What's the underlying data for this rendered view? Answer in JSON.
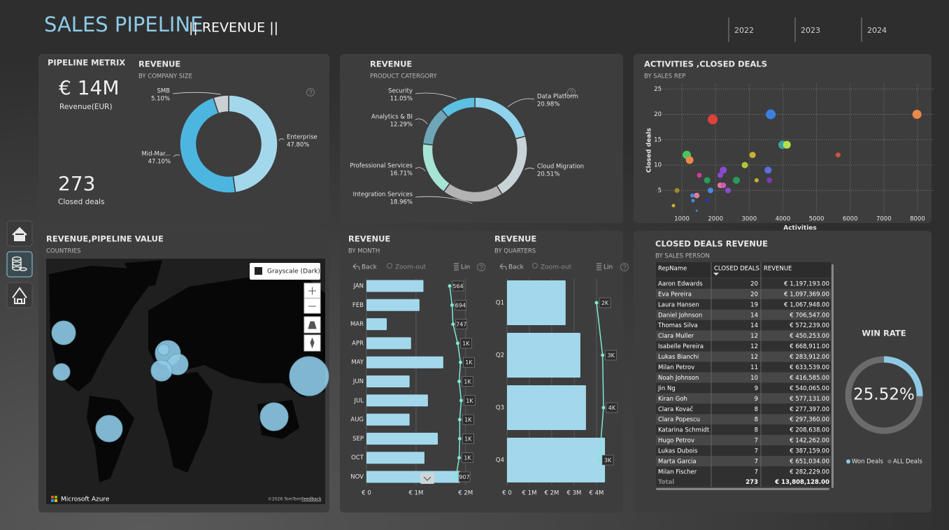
{
  "header": {
    "title": "SALES PIPELINE",
    "subtitle": "|| REVENUE ||",
    "years": [
      "2022",
      "2023",
      "2024"
    ]
  },
  "kpi": {
    "title": "PIPELINE METRIX",
    "revenue": "€ 14M",
    "revenue_label": "Revenue(EUR)",
    "deals": "273",
    "deals_label": "Closed deals"
  },
  "map": {
    "title": "REVENUE,PIPELINE VALUE",
    "subtitle": "COUNTRIES",
    "style": "Grayscale (Dark)",
    "brand": "Microsoft Azure",
    "copyright": "©2026 TomTom",
    "feedback": "Feedback"
  },
  "chart_data": [
    {
      "type": "donut",
      "title": "REVENUE",
      "subtitle": "BY COMPANY SIZE",
      "categories": [
        "Enterprise",
        "Mid-Mar...",
        "SMB"
      ],
      "values": [
        47.8,
        47.1,
        5.1
      ],
      "value_labels": [
        "47.80%",
        "47.10%",
        "5.10%"
      ],
      "colors": [
        "#a3d8ec",
        "#4cb6e0",
        "#c9d1d5"
      ]
    },
    {
      "type": "donut",
      "title": "REVENUE",
      "subtitle": "PRODUCT CATERGORY",
      "categories": [
        "Data Platform",
        "Cloud Migration",
        "Integration Services",
        "Professional Services",
        "Analytics & BI",
        "Security"
      ],
      "values": [
        20.98,
        20.51,
        18.96,
        16.71,
        12.29,
        11.05
      ],
      "value_labels": [
        "20.98%",
        "20.51%",
        "18.96%",
        "16.71%",
        "12.29%",
        "11.05%"
      ],
      "colors": [
        "#8ed2ec",
        "#c8d3d8",
        "#b3b3b3",
        "#a6e4d6",
        "#6ea6b8",
        "#5cc0e2"
      ]
    },
    {
      "type": "scatter",
      "title": "ACTIVITIES ,CLOSED DEALS",
      "subtitle": "BY SALES REP",
      "x_label": "Activities",
      "y_label": "Closed deals",
      "x": [
        1915,
        3640,
        7985,
        1145,
        1230,
        3990,
        4120,
        5640,
        3100,
        2870,
        3560,
        2230,
        1520,
        2140,
        2620,
        1750,
        3220,
        3600,
        2140,
        2230,
        1850,
        2370,
        855,
        1440,
        1310,
        1330,
        1750,
        750,
        1440
      ],
      "values": [
        19,
        20,
        20,
        12,
        11,
        14,
        14,
        12,
        12,
        10,
        9,
        9,
        8,
        8,
        7,
        7,
        7,
        7,
        6,
        6,
        5,
        5,
        5,
        4,
        4,
        3,
        3,
        2,
        1
      ],
      "sizes": [
        7,
        7,
        6.5,
        6,
        5.5,
        6,
        5.5,
        3.5,
        4.5,
        4.5,
        5,
        5,
        3.5,
        4,
        5,
        4.5,
        3,
        4,
        4,
        4,
        4,
        4,
        3.5,
        4,
        3,
        2.5,
        3,
        2.5,
        1.5
      ],
      "colors": [
        "#e0403a",
        "#3b7fe0",
        "#e8894a",
        "#4cc460",
        "#e8894a",
        "#3aa0a8",
        "#b6e04a",
        "#d0543a",
        "#c8b030",
        "#b0c83a",
        "#5a6ee0",
        "#8a4ad0",
        "#d03a9a",
        "#8a4ad0",
        "#2a9a5a",
        "#2a9a5a",
        "#c8b030",
        "#7a3ab0",
        "#e07aa0",
        "#d05ab0",
        "#4a8ae0",
        "#8a4ad0",
        "#9a8a2a",
        "#e07aa0",
        "#4a8ae0",
        "#4a8ae0",
        "#2a3a9a",
        "#c8b030",
        "#4a8ae0"
      ],
      "xlim": [
        230,
        8500
      ],
      "ylim": [
        0.5,
        26
      ],
      "xticks": [
        1000,
        2000,
        3000,
        4000,
        5000,
        6000,
        7000,
        8000
      ],
      "yticks": [
        5,
        10,
        15,
        20,
        25
      ],
      "grid": true
    },
    {
      "type": "hbar",
      "title": "REVENUE",
      "subtitle": "BY MONTH",
      "toolbar": [
        "Back",
        "Zoom-out",
        "Lin"
      ],
      "categories": [
        "JAN",
        "FEB",
        "MAR",
        "APR",
        "MAY",
        "JUN",
        "JUL",
        "AUG",
        "SEP",
        "OCT",
        "NOV"
      ],
      "series": [
        {
          "values": [
            1150000,
            1070000,
            410000,
            900000,
            1550000,
            870000,
            1240000,
            870000,
            1440000,
            1170000,
            1890000
          ],
          "color": "#a3d8ec"
        },
        {
          "axis": "x2",
          "values": [
            564,
            694,
            747,
            1000,
            1150,
            1080,
            1190,
            1110,
            1110,
            1080,
            907
          ],
          "value_labels": [
            "564",
            "694",
            "747",
            "1K",
            "1K",
            "1K",
            "1K",
            "1K",
            "1K",
            "1K",
            "907"
          ],
          "color": "#7fe8d0"
        }
      ],
      "xlim": [
        0,
        2060000
      ],
      "xticks": [
        {
          "value": 0,
          "label": "€ 0"
        },
        {
          "value": 1000000,
          "label": "€ 1M"
        },
        {
          "value": 2000000,
          "label": "€ 2M"
        }
      ],
      "x2lim": [
        -3960,
        1590
      ],
      "grid": true
    },
    {
      "type": "hbar",
      "title": "REVENUE",
      "subtitle": "BY QUARTERS",
      "toolbar": [
        "Back",
        "Zoom-out",
        "Lin"
      ],
      "categories": [
        "Q1",
        "Q2",
        "Q3",
        "Q4"
      ],
      "series": [
        {
          "values": [
            2620000,
            3280000,
            3530000,
            4380000
          ],
          "color": "#a3d8ec"
        },
        {
          "axis": "x2",
          "values": [
            2000,
            3400,
            3600,
            2650
          ],
          "value_labels": [
            "2K",
            "3K",
            "4K",
            "3K"
          ],
          "color": "#7fe8d0"
        }
      ],
      "xlim": [
        0,
        4690000
      ],
      "xticks": [
        {
          "value": 0,
          "label": "€ 0"
        },
        {
          "value": 1000000,
          "label": "€ 1M"
        },
        {
          "value": 2000000,
          "label": "€ 2M"
        },
        {
          "value": 3000000,
          "label": "€ 3M"
        },
        {
          "value": 4000000,
          "label": "€ 4M"
        }
      ],
      "x2lim": [
        -18600,
        5540
      ],
      "grid": true
    },
    {
      "type": "ring",
      "title": "WIN RATE",
      "value": 25.52,
      "value_label": "25.52%",
      "max": 100,
      "legend": [
        "Won Deals",
        "ALL Deals"
      ],
      "colors": [
        "#8ecae6",
        "#6b6b6b"
      ]
    }
  ],
  "table": {
    "title": "CLOSED DEALS REVENUE",
    "subtitle": "BY SALES PERSON",
    "columns": [
      "RepName",
      "CLOSED DEALS",
      "REVENUE"
    ],
    "rows": [
      [
        "Aaron Edwards",
        "20",
        "€ 1,197,193.00"
      ],
      [
        "Eva Pereira",
        "20",
        "€ 1,097,369.00"
      ],
      [
        "Laura Hansen",
        "19",
        "€ 1,067,948.00"
      ],
      [
        "Daniel Johnson",
        "14",
        "€ 706,547.00"
      ],
      [
        "Thomas Silva",
        "14",
        "€ 572,239.00"
      ],
      [
        "Clara Muller",
        "12",
        "€ 450,253.00"
      ],
      [
        "Isabelle Pereira",
        "12",
        "€ 668,911.00"
      ],
      [
        "Lukas Bianchi",
        "12",
        "€ 283,912.00"
      ],
      [
        "Milan Petrov",
        "11",
        "€ 633,539.00"
      ],
      [
        "Noah Johnson",
        "10",
        "€ 416,585.00"
      ],
      [
        "Jin Ng",
        "9",
        "€ 540,065.00"
      ],
      [
        "Kiran Goh",
        "9",
        "€ 577,131.00"
      ],
      [
        "Clara Kovač",
        "8",
        "€ 277,397.00"
      ],
      [
        "Clara Popescu",
        "8",
        "€ 297,360.00"
      ],
      [
        "Katarina Schmidt",
        "8",
        "€ 208,638.00"
      ],
      [
        "Hugo Petrov",
        "7",
        "€ 142,262.00"
      ],
      [
        "Lukas Dubois",
        "7",
        "€ 387,159.00"
      ],
      [
        "Marta Garcia",
        "7",
        "€ 651,034.00"
      ],
      [
        "Milan Fischer",
        "7",
        "€ 282,229.00"
      ]
    ],
    "total": [
      "Total",
      "273",
      "€ 13,808,128.00"
    ]
  }
}
